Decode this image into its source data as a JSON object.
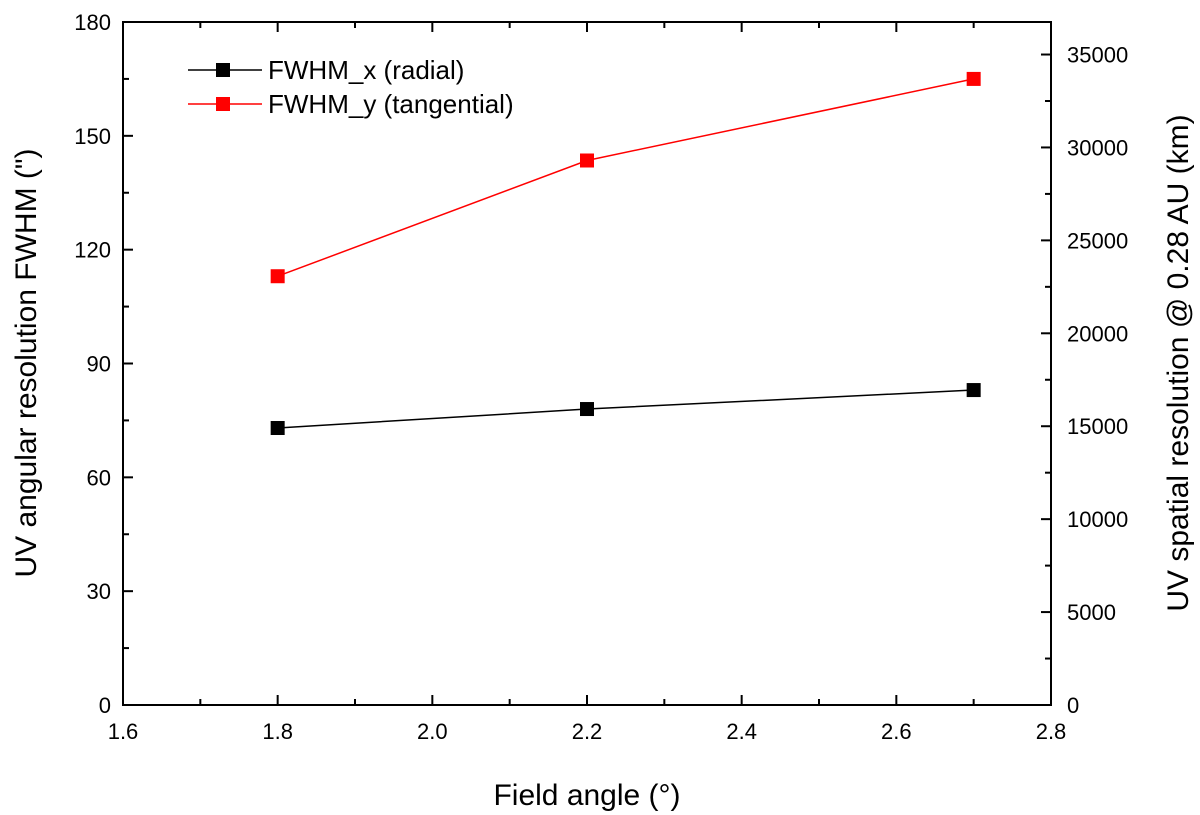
{
  "chart_data": {
    "type": "line",
    "title": "",
    "xlabel": "Field angle (°)",
    "ylabel": "UV angular resolution FWHM (\")",
    "y2label": "UV spatial resolution @ 0.28 AU (km)",
    "xlim": [
      1.6,
      2.8
    ],
    "ylim": [
      0,
      180
    ],
    "y2lim": [
      0,
      36750
    ],
    "xticks": [
      1.6,
      1.8,
      2.0,
      2.2,
      2.4,
      2.6,
      2.8
    ],
    "xtick_labels": [
      "1.6",
      "1.8",
      "2.0",
      "2.2",
      "2.4",
      "2.6",
      "2.8"
    ],
    "yticks": [
      0,
      30,
      60,
      90,
      120,
      150,
      180
    ],
    "ytick_labels": [
      "0",
      "30",
      "60",
      "90",
      "120",
      "150",
      "180"
    ],
    "y2ticks": [
      0,
      5000,
      10000,
      15000,
      20000,
      25000,
      30000,
      35000
    ],
    "y2tick_labels": [
      "0",
      "5000",
      "10000",
      "15000",
      "20000",
      "25000",
      "30000",
      "35000"
    ],
    "grid": false,
    "legend_position": "top-left",
    "series": [
      {
        "name": "FWHM_x (radial)",
        "color": "#000000",
        "x": [
          1.8,
          2.2,
          2.7
        ],
        "y": [
          73,
          78,
          83
        ]
      },
      {
        "name": "FWHM_y (tangential)",
        "color": "#ff0000",
        "x": [
          1.8,
          2.2,
          2.7
        ],
        "y": [
          113,
          143.5,
          165
        ]
      }
    ]
  }
}
